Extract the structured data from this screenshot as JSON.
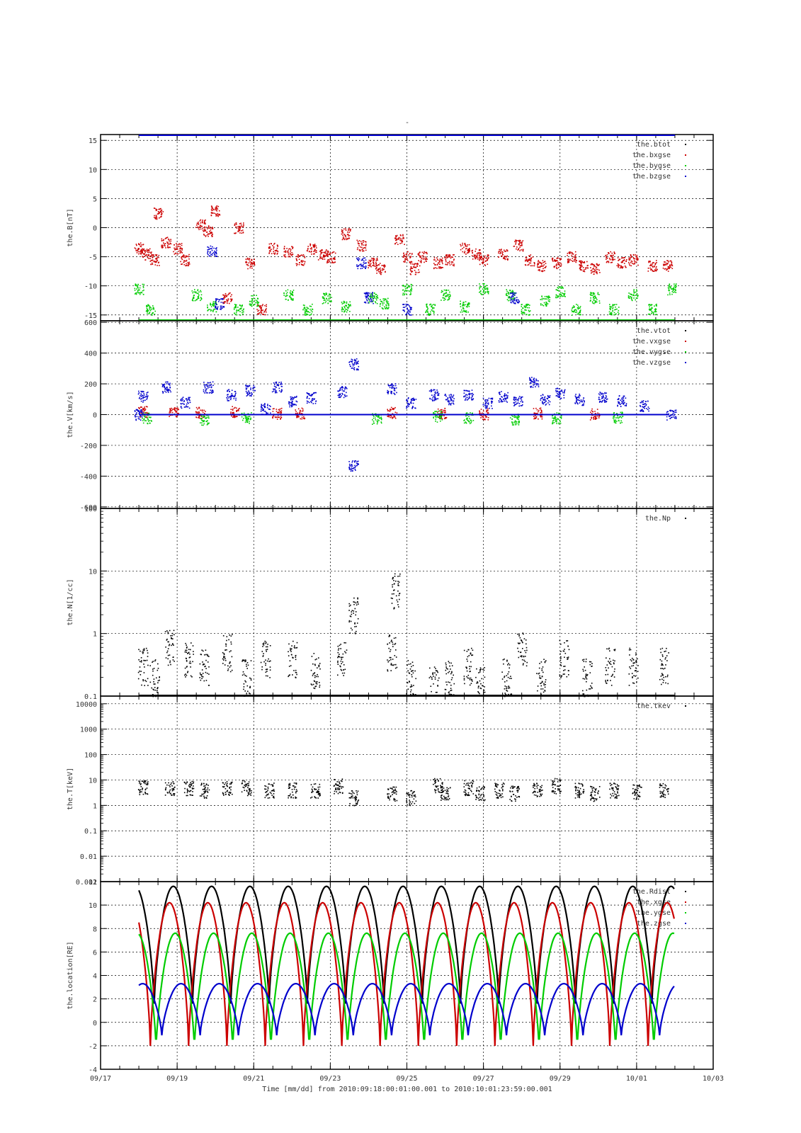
{
  "top_title": "-",
  "time_label": "Time [mm/dd]  from 2010:09:18:00:01:00.001  to  2010:10:01:23:59:00.001",
  "chart_data": [
    {
      "type": "scatter",
      "ylabel": "the.B[nT]",
      "ylim": [
        -16,
        16
      ],
      "yticks": [
        -15,
        -10,
        -5,
        0,
        5,
        10,
        15
      ],
      "ytick_labels": [
        "-15",
        "-10",
        "-5",
        "0",
        "5",
        "10",
        "15"
      ],
      "yscale": "linear",
      "grid": true,
      "legend_position": "top-right",
      "series": [
        {
          "name": "the.btot",
          "color": "#000000",
          "values": []
        },
        {
          "name": "the.bxgse",
          "color": "#cc0000",
          "values": [
            [
              18.0,
              -3.5
            ],
            [
              18.2,
              -4.5
            ],
            [
              18.4,
              -5.5
            ],
            [
              18.5,
              2.5
            ],
            [
              18.7,
              -2.5
            ],
            [
              19.0,
              -3.5
            ],
            [
              19.2,
              -5.5
            ],
            [
              19.6,
              0.5
            ],
            [
              19.8,
              -0.5
            ],
            [
              20.0,
              3.0
            ],
            [
              20.3,
              -12.0
            ],
            [
              20.6,
              0.0
            ],
            [
              20.9,
              -6.0
            ],
            [
              21.2,
              -14.0
            ],
            [
              21.5,
              -3.5
            ],
            [
              21.9,
              -4.0
            ],
            [
              22.2,
              -5.5
            ],
            [
              22.5,
              -3.5
            ],
            [
              22.8,
              -4.5
            ],
            [
              23.0,
              -5.0
            ],
            [
              23.4,
              -1.0
            ],
            [
              23.8,
              -3.0
            ],
            [
              24.1,
              -6.0
            ],
            [
              24.3,
              -7.0
            ],
            [
              24.8,
              -2.0
            ],
            [
              25.0,
              -5.0
            ],
            [
              25.2,
              -7.0
            ],
            [
              25.4,
              -5.0
            ],
            [
              25.8,
              -6.0
            ],
            [
              26.1,
              -5.5
            ],
            [
              26.5,
              -3.5
            ],
            [
              26.8,
              -4.5
            ],
            [
              27.0,
              -5.5
            ],
            [
              27.5,
              -4.5
            ],
            [
              27.9,
              -3.0
            ],
            [
              28.2,
              -5.5
            ],
            [
              28.5,
              -6.5
            ],
            [
              28.9,
              -6.0
            ],
            [
              29.3,
              -5.0
            ],
            [
              29.6,
              -6.5
            ],
            [
              29.9,
              -7.0
            ],
            [
              30.3,
              -5.0
            ],
            [
              30.6,
              -6.0
            ],
            [
              30.9,
              -5.5
            ],
            [
              31.4,
              -6.5
            ],
            [
              31.8,
              -6.5
            ]
          ]
        },
        {
          "name": "the.bygse",
          "color": "#00cc00",
          "values": [
            [
              18.0,
              -10.5
            ],
            [
              18.3,
              -14.0
            ],
            [
              19.5,
              -11.5
            ],
            [
              19.9,
              -13.5
            ],
            [
              20.6,
              -14.0
            ],
            [
              21.0,
              -12.5
            ],
            [
              21.9,
              -11.5
            ],
            [
              22.4,
              -14.0
            ],
            [
              22.9,
              -12.0
            ],
            [
              23.4,
              -13.5
            ],
            [
              24.1,
              -12.0
            ],
            [
              24.4,
              -13.0
            ],
            [
              25.0,
              -10.5
            ],
            [
              25.6,
              -14.0
            ],
            [
              26.0,
              -11.5
            ],
            [
              26.5,
              -13.5
            ],
            [
              27.0,
              -10.5
            ],
            [
              27.7,
              -11.5
            ],
            [
              28.1,
              -14.0
            ],
            [
              28.6,
              -12.5
            ],
            [
              29.0,
              -11.0
            ],
            [
              29.4,
              -14.0
            ],
            [
              29.9,
              -12.0
            ],
            [
              30.4,
              -14.0
            ],
            [
              30.9,
              -11.5
            ],
            [
              31.4,
              -14.0
            ],
            [
              31.9,
              -10.5
            ]
          ]
        },
        {
          "name": "the.bzgse",
          "color": "#0000cc",
          "values": [
            [
              19.9,
              -4.0
            ],
            [
              20.1,
              -13.0
            ],
            [
              23.8,
              -6.0
            ],
            [
              24.0,
              -12.0
            ],
            [
              25.0,
              -14.0
            ],
            [
              27.8,
              -12.0
            ]
          ]
        }
      ]
    },
    {
      "type": "scatter",
      "ylabel": "the.V[km/s]",
      "ylim": [
        -610,
        610
      ],
      "yticks": [
        -600,
        -400,
        -200,
        0,
        200,
        400,
        600
      ],
      "ytick_labels": [
        "-600",
        "-400",
        "-200",
        "0",
        "200",
        "400",
        "600"
      ],
      "yscale": "linear",
      "grid": true,
      "legend_position": "top-right",
      "series": [
        {
          "name": "the.vtot",
          "color": "#000000",
          "values": []
        },
        {
          "name": "the.vxgse",
          "color": "#cc0000",
          "values": [
            [
              18.1,
              20
            ],
            [
              18.9,
              20
            ],
            [
              19.6,
              15
            ],
            [
              20.5,
              20
            ],
            [
              21.6,
              10
            ],
            [
              22.2,
              10
            ],
            [
              24.6,
              15
            ],
            [
              25.9,
              10
            ],
            [
              27.0,
              5
            ],
            [
              28.4,
              10
            ],
            [
              29.9,
              5
            ]
          ]
        },
        {
          "name": "the.vygse",
          "color": "#00cc00",
          "values": [
            [
              18.2,
              -20
            ],
            [
              19.7,
              -30
            ],
            [
              20.8,
              -20
            ],
            [
              24.2,
              -25
            ],
            [
              25.8,
              -10
            ],
            [
              26.6,
              -20
            ],
            [
              27.8,
              -30
            ],
            [
              28.9,
              -20
            ],
            [
              30.5,
              -15
            ]
          ]
        },
        {
          "name": "the.vzgse",
          "color": "#0000cc",
          "values": [
            [
              18.0,
              0
            ],
            [
              18.1,
              120
            ],
            [
              18.7,
              180
            ],
            [
              19.2,
              80
            ],
            [
              19.8,
              180
            ],
            [
              20.4,
              130
            ],
            [
              20.9,
              160
            ],
            [
              21.3,
              40
            ],
            [
              21.6,
              180
            ],
            [
              22.0,
              90
            ],
            [
              22.5,
              110
            ],
            [
              23.3,
              150
            ],
            [
              23.6,
              330
            ],
            [
              23.6,
              -330
            ],
            [
              24.6,
              170
            ],
            [
              25.1,
              80
            ],
            [
              25.7,
              130
            ],
            [
              26.1,
              100
            ],
            [
              26.6,
              130
            ],
            [
              27.1,
              80
            ],
            [
              27.5,
              120
            ],
            [
              27.9,
              90
            ],
            [
              28.3,
              210
            ],
            [
              28.6,
              100
            ],
            [
              29.0,
              140
            ],
            [
              29.5,
              100
            ],
            [
              30.1,
              120
            ],
            [
              30.6,
              90
            ],
            [
              31.2,
              60
            ],
            [
              31.9,
              0
            ]
          ]
        }
      ]
    },
    {
      "type": "scatter",
      "ylabel": "the.N[1/cc]",
      "ylim": [
        0.1,
        100
      ],
      "yticks": [
        0.1,
        1,
        10,
        100
      ],
      "ytick_labels": [
        "0.1",
        "1",
        "10",
        "100"
      ],
      "yscale": "log",
      "grid": true,
      "legend_position": "top-right",
      "series": [
        {
          "name": "the.Np",
          "color": "#000000",
          "values": [
            [
              18.1,
              0.3
            ],
            [
              18.4,
              0.2
            ],
            [
              18.8,
              0.6
            ],
            [
              19.3,
              0.4
            ],
            [
              19.7,
              0.3
            ],
            [
              20.3,
              0.5
            ],
            [
              20.8,
              0.2
            ],
            [
              21.3,
              0.4
            ],
            [
              22.0,
              0.4
            ],
            [
              22.6,
              0.25
            ],
            [
              23.3,
              0.4
            ],
            [
              23.6,
              2.0
            ],
            [
              24.6,
              0.5
            ],
            [
              24.7,
              5.0
            ],
            [
              25.1,
              0.2
            ],
            [
              25.7,
              0.15
            ],
            [
              26.1,
              0.2
            ],
            [
              26.6,
              0.3
            ],
            [
              26.9,
              0.15
            ],
            [
              27.6,
              0.2
            ],
            [
              28.0,
              0.6
            ],
            [
              28.5,
              0.2
            ],
            [
              29.1,
              0.4
            ],
            [
              29.7,
              0.2
            ],
            [
              30.3,
              0.3
            ],
            [
              30.9,
              0.3
            ],
            [
              31.7,
              0.3
            ]
          ]
        }
      ]
    },
    {
      "type": "scatter",
      "ylabel": "the.T[keV]",
      "ylim": [
        0.001,
        20000
      ],
      "yticks": [
        0.001,
        0.01,
        0.1,
        1,
        10,
        100,
        1000,
        10000
      ],
      "ytick_labels": [
        "0.001",
        "0.01",
        "0.1",
        "1",
        "10",
        "100",
        "1000",
        "10000"
      ],
      "yscale": "log",
      "grid": true,
      "legend_position": "top-right",
      "series": [
        {
          "name": "the.tkev",
          "color": "#000000",
          "values": [
            [
              18.1,
              5.0
            ],
            [
              18.8,
              5.0
            ],
            [
              19.3,
              5.0
            ],
            [
              19.7,
              4.0
            ],
            [
              20.3,
              5.0
            ],
            [
              20.8,
              5.0
            ],
            [
              21.4,
              4.0
            ],
            [
              22.0,
              4.0
            ],
            [
              22.6,
              4.0
            ],
            [
              23.2,
              6.0
            ],
            [
              23.6,
              2.0
            ],
            [
              24.6,
              3.0
            ],
            [
              25.1,
              2.0
            ],
            [
              25.8,
              6.0
            ],
            [
              26.0,
              3.0
            ],
            [
              26.6,
              5.0
            ],
            [
              26.9,
              3.0
            ],
            [
              27.4,
              4.0
            ],
            [
              27.8,
              3.0
            ],
            [
              28.4,
              4.0
            ],
            [
              28.9,
              6.0
            ],
            [
              29.5,
              4.0
            ],
            [
              29.9,
              3.0
            ],
            [
              30.4,
              4.0
            ],
            [
              31.0,
              3.5
            ],
            [
              31.7,
              4.0
            ]
          ]
        }
      ]
    },
    {
      "type": "line",
      "ylabel": "the.location[RE]",
      "ylim": [
        -4,
        12
      ],
      "yticks": [
        -4,
        -2,
        0,
        2,
        4,
        6,
        8,
        10,
        12
      ],
      "ytick_labels": [
        "-4",
        "-2",
        "0",
        "2",
        "4",
        "6",
        "8",
        "10",
        "12"
      ],
      "yscale": "linear",
      "grid": true,
      "legend_position": "top-right",
      "orbit_period_days": 1.0,
      "orbit_apogee_days": [
        18.9,
        19.9,
        20.9,
        21.9,
        22.9,
        23.9,
        24.9,
        25.9,
        26.9,
        27.9,
        28.9,
        29.9,
        30.9,
        31.85
      ],
      "series": [
        {
          "name": "the.Rdist",
          "color": "#000000",
          "min": 1.6,
          "max": 11.6,
          "phase": 0.0
        },
        {
          "name": "the.xgse",
          "color": "#cc0000",
          "min": -2.0,
          "max": 10.2,
          "phase": -0.1
        },
        {
          "name": "the.ygse",
          "color": "#00cc00",
          "min": -2.3,
          "max": 7.6,
          "phase": 0.05
        },
        {
          "name": "the.zgse",
          "color": "#0000cc",
          "min": -1.1,
          "max": 3.3,
          "phase": 0.2
        }
      ]
    }
  ],
  "x_axis": {
    "ticks": [
      17,
      19,
      21,
      23,
      25,
      27,
      29,
      31,
      33
    ],
    "tick_labels": [
      "09/17",
      "09/19",
      "09/21",
      "09/23",
      "09/25",
      "09/27",
      "09/29",
      "10/01",
      "10/03"
    ],
    "minor_step": 0.5,
    "xlim": [
      17,
      33
    ]
  }
}
